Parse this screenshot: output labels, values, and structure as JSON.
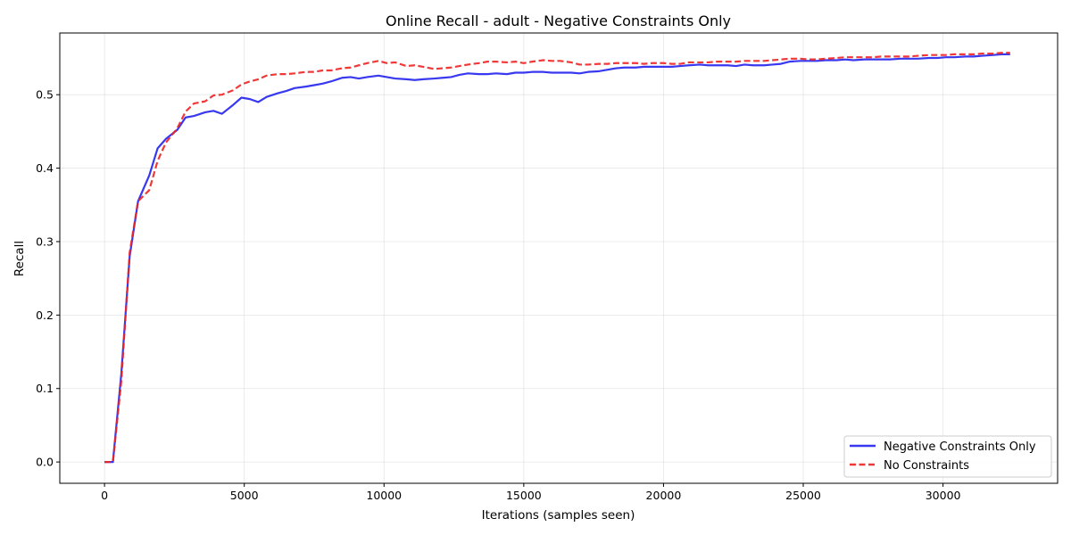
{
  "chart_data": {
    "type": "line",
    "title": "Online Recall - adult - Negative Constraints Only",
    "xlabel": "Iterations (samples seen)",
    "ylabel": "Recall",
    "xlim": [
      -1600,
      34100
    ],
    "ylim": [
      -0.029,
      0.584
    ],
    "xticks": [
      0,
      5000,
      10000,
      15000,
      20000,
      25000,
      30000
    ],
    "yticks": [
      0.0,
      0.1,
      0.2,
      0.3,
      0.4,
      0.5
    ],
    "ytick_labels": [
      "0.0",
      "0.1",
      "0.2",
      "0.3",
      "0.4",
      "0.5"
    ],
    "grid": true,
    "legend_position": "lower-right",
    "series": [
      {
        "name": "Negative Constraints Only",
        "color": "#2222ee",
        "dash": "solid",
        "points": [
          [
            0,
            0.0
          ],
          [
            300,
            0.0
          ],
          [
            600,
            0.12
          ],
          [
            900,
            0.28
          ],
          [
            1200,
            0.355
          ],
          [
            1600,
            0.39
          ],
          [
            1900,
            0.427
          ],
          [
            2200,
            0.44
          ],
          [
            2600,
            0.452
          ],
          [
            2900,
            0.469
          ],
          [
            3200,
            0.471
          ],
          [
            3600,
            0.476
          ],
          [
            3900,
            0.478
          ],
          [
            4200,
            0.474
          ],
          [
            4600,
            0.486
          ],
          [
            4900,
            0.496
          ],
          [
            5200,
            0.494
          ],
          [
            5500,
            0.49
          ],
          [
            5800,
            0.497
          ],
          [
            6200,
            0.502
          ],
          [
            6500,
            0.505
          ],
          [
            6800,
            0.509
          ],
          [
            7200,
            0.511
          ],
          [
            7500,
            0.513
          ],
          [
            7800,
            0.515
          ],
          [
            8100,
            0.518
          ],
          [
            8500,
            0.523
          ],
          [
            8800,
            0.524
          ],
          [
            9100,
            0.522
          ],
          [
            9400,
            0.524
          ],
          [
            9800,
            0.526
          ],
          [
            10100,
            0.524
          ],
          [
            10400,
            0.522
          ],
          [
            10800,
            0.521
          ],
          [
            11100,
            0.52
          ],
          [
            11400,
            0.521
          ],
          [
            11800,
            0.522
          ],
          [
            12100,
            0.523
          ],
          [
            12400,
            0.524
          ],
          [
            12700,
            0.527
          ],
          [
            13000,
            0.529
          ],
          [
            13400,
            0.528
          ],
          [
            13700,
            0.528
          ],
          [
            14000,
            0.529
          ],
          [
            14400,
            0.528
          ],
          [
            14700,
            0.53
          ],
          [
            15000,
            0.53
          ],
          [
            15300,
            0.531
          ],
          [
            15700,
            0.531
          ],
          [
            16000,
            0.53
          ],
          [
            16300,
            0.53
          ],
          [
            16700,
            0.53
          ],
          [
            17000,
            0.529
          ],
          [
            17300,
            0.531
          ],
          [
            17700,
            0.532
          ],
          [
            18000,
            0.534
          ],
          [
            18300,
            0.536
          ],
          [
            18600,
            0.537
          ],
          [
            19000,
            0.537
          ],
          [
            19300,
            0.538
          ],
          [
            19600,
            0.538
          ],
          [
            20000,
            0.538
          ],
          [
            20300,
            0.538
          ],
          [
            20600,
            0.539
          ],
          [
            20900,
            0.54
          ],
          [
            21300,
            0.541
          ],
          [
            21600,
            0.54
          ],
          [
            21900,
            0.54
          ],
          [
            22300,
            0.54
          ],
          [
            22600,
            0.539
          ],
          [
            22900,
            0.541
          ],
          [
            23200,
            0.54
          ],
          [
            23600,
            0.54
          ],
          [
            23900,
            0.541
          ],
          [
            24200,
            0.542
          ],
          [
            24500,
            0.545
          ],
          [
            24900,
            0.546
          ],
          [
            25200,
            0.546
          ],
          [
            25500,
            0.546
          ],
          [
            25800,
            0.547
          ],
          [
            26200,
            0.547
          ],
          [
            26500,
            0.548
          ],
          [
            26800,
            0.547
          ],
          [
            27200,
            0.548
          ],
          [
            27500,
            0.548
          ],
          [
            27800,
            0.548
          ],
          [
            28100,
            0.548
          ],
          [
            28500,
            0.549
          ],
          [
            28800,
            0.549
          ],
          [
            29100,
            0.549
          ],
          [
            29500,
            0.55
          ],
          [
            29800,
            0.55
          ],
          [
            30100,
            0.551
          ],
          [
            30400,
            0.551
          ],
          [
            30800,
            0.552
          ],
          [
            31100,
            0.552
          ],
          [
            31400,
            0.553
          ],
          [
            31800,
            0.554
          ],
          [
            32100,
            0.555
          ],
          [
            32400,
            0.555
          ]
        ]
      },
      {
        "name": "No Constraints",
        "color": "#ee2222",
        "dash": "dashed",
        "points": [
          [
            0,
            0.0
          ],
          [
            300,
            0.0
          ],
          [
            600,
            0.11
          ],
          [
            900,
            0.285
          ],
          [
            1200,
            0.355
          ],
          [
            1600,
            0.37
          ],
          [
            1900,
            0.41
          ],
          [
            2200,
            0.435
          ],
          [
            2600,
            0.454
          ],
          [
            2900,
            0.477
          ],
          [
            3200,
            0.488
          ],
          [
            3600,
            0.491
          ],
          [
            3900,
            0.499
          ],
          [
            4200,
            0.5
          ],
          [
            4600,
            0.506
          ],
          [
            4900,
            0.514
          ],
          [
            5200,
            0.518
          ],
          [
            5500,
            0.521
          ],
          [
            5800,
            0.526
          ],
          [
            6200,
            0.528
          ],
          [
            6500,
            0.528
          ],
          [
            6800,
            0.529
          ],
          [
            7200,
            0.531
          ],
          [
            7500,
            0.531
          ],
          [
            7800,
            0.533
          ],
          [
            8100,
            0.533
          ],
          [
            8500,
            0.536
          ],
          [
            8800,
            0.537
          ],
          [
            9100,
            0.54
          ],
          [
            9400,
            0.543
          ],
          [
            9800,
            0.546
          ],
          [
            10100,
            0.543
          ],
          [
            10400,
            0.544
          ],
          [
            10800,
            0.539
          ],
          [
            11100,
            0.54
          ],
          [
            11400,
            0.538
          ],
          [
            11800,
            0.535
          ],
          [
            12100,
            0.536
          ],
          [
            12400,
            0.537
          ],
          [
            12700,
            0.539
          ],
          [
            13000,
            0.541
          ],
          [
            13400,
            0.543
          ],
          [
            13700,
            0.545
          ],
          [
            14000,
            0.545
          ],
          [
            14400,
            0.544
          ],
          [
            14700,
            0.545
          ],
          [
            15000,
            0.543
          ],
          [
            15300,
            0.545
          ],
          [
            15700,
            0.547
          ],
          [
            16000,
            0.546
          ],
          [
            16300,
            0.546
          ],
          [
            16700,
            0.544
          ],
          [
            17000,
            0.541
          ],
          [
            17300,
            0.541
          ],
          [
            17700,
            0.542
          ],
          [
            18000,
            0.542
          ],
          [
            18300,
            0.543
          ],
          [
            18600,
            0.543
          ],
          [
            19000,
            0.543
          ],
          [
            19300,
            0.542
          ],
          [
            19600,
            0.543
          ],
          [
            20000,
            0.543
          ],
          [
            20300,
            0.542
          ],
          [
            20600,
            0.542
          ],
          [
            20900,
            0.544
          ],
          [
            21300,
            0.544
          ],
          [
            21600,
            0.544
          ],
          [
            21900,
            0.545
          ],
          [
            22300,
            0.545
          ],
          [
            22600,
            0.545
          ],
          [
            22900,
            0.546
          ],
          [
            23200,
            0.546
          ],
          [
            23600,
            0.546
          ],
          [
            23900,
            0.547
          ],
          [
            24200,
            0.548
          ],
          [
            24500,
            0.549
          ],
          [
            24900,
            0.549
          ],
          [
            25200,
            0.548
          ],
          [
            25500,
            0.548
          ],
          [
            25800,
            0.549
          ],
          [
            26200,
            0.55
          ],
          [
            26500,
            0.551
          ],
          [
            26800,
            0.551
          ],
          [
            27200,
            0.551
          ],
          [
            27500,
            0.551
          ],
          [
            27800,
            0.552
          ],
          [
            28100,
            0.552
          ],
          [
            28500,
            0.552
          ],
          [
            28800,
            0.552
          ],
          [
            29100,
            0.553
          ],
          [
            29500,
            0.554
          ],
          [
            29800,
            0.554
          ],
          [
            30100,
            0.554
          ],
          [
            30400,
            0.555
          ],
          [
            30800,
            0.555
          ],
          [
            31100,
            0.555
          ],
          [
            31400,
            0.556
          ],
          [
            31800,
            0.556
          ],
          [
            32100,
            0.557
          ],
          [
            32400,
            0.557
          ]
        ]
      }
    ]
  }
}
